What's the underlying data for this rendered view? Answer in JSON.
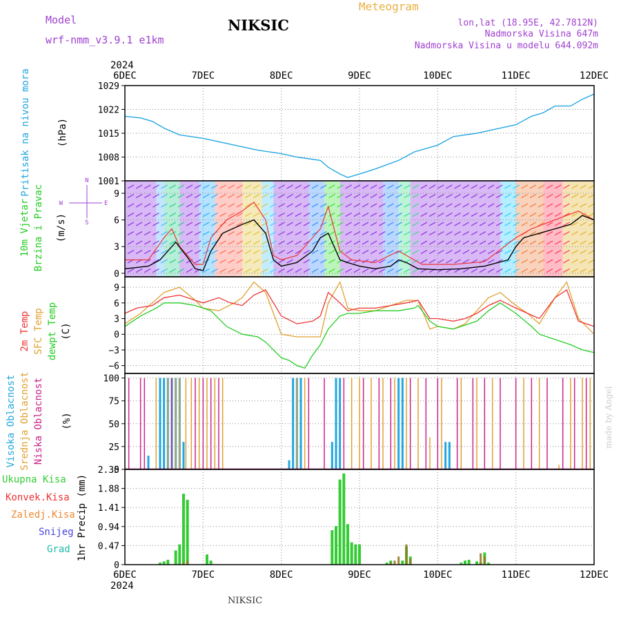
{
  "header": {
    "model_label": "Model",
    "model_name": "wrf-nmm_v3.9.1 e1km",
    "station": "NIKSIC",
    "product": "Meteogram",
    "coords": "lon,lat (18.95E, 42.7812N)",
    "elev": "Nadmorska Visina 647m",
    "elev_model": "Nadmorska Visina u modelu 644.092m",
    "year_top": "2024",
    "year_bottom": "2024",
    "footer": "NIKSIC",
    "credit": "made by Angel"
  },
  "colors": {
    "pressure": "#22a6e0",
    "wind_speed": "#000000",
    "wind_gust": "#ee3333",
    "temp_2m": "#ee3333",
    "temp_sfc": "#e0a030",
    "temp_dew": "#22cc22",
    "cloud_high": "#22a6e0",
    "cloud_mid": "#e0a030",
    "cloud_low": "#cc2288",
    "precip_total": "#33cc33",
    "precip_conv": "#ee3333",
    "precip_frozen": "#ee8833",
    "precip_snow": "#4444dd",
    "precip_graupel": "#22bbaa"
  },
  "chart_data": [
    {
      "type": "line",
      "panel": "pressure",
      "ylabel": [
        "Pritisak na nivou mora",
        "(hPa)"
      ],
      "x_ticks": [
        "6DEC",
        "7DEC",
        "8DEC",
        "9DEC",
        "10DEC",
        "11DEC",
        "12DEC"
      ],
      "xlim_days": [
        0,
        6
      ],
      "ylim": [
        1001,
        1029
      ],
      "y_ticks": [
        1001,
        1008,
        1015,
        1022,
        1029
      ],
      "grid": true,
      "series": [
        {
          "x": [
            0,
            0.2,
            0.35,
            0.5,
            0.7,
            1.0,
            1.2,
            1.5,
            1.7,
            2.0,
            2.2,
            2.5,
            2.6,
            2.75,
            2.85,
            3.0,
            3.2,
            3.5,
            3.7,
            4.0,
            4.2,
            4.5,
            4.7,
            5.0,
            5.2,
            5.35,
            5.5,
            5.7,
            5.85,
            6.0
          ],
          "y": [
            1020,
            1019.5,
            1018.5,
            1016.5,
            1014.5,
            1013.5,
            1012.5,
            1011,
            1010,
            1009,
            1008,
            1007,
            1005,
            1003,
            1002,
            1003,
            1004.5,
            1007,
            1009.5,
            1011.5,
            1014,
            1015,
            1016,
            1017.5,
            1020,
            1021,
            1023,
            1023,
            1025,
            1026.5
          ]
        }
      ]
    },
    {
      "type": "line",
      "panel": "wind",
      "ylabel": [
        "10m Vjetar",
        "Brzina i Pravac",
        "(m/s)"
      ],
      "direction_legend": {
        "n": "N",
        "e": "E",
        "s": "S",
        "w": "W"
      },
      "ylim": [
        -0.4,
        10.4
      ],
      "y_ticks": [
        0,
        3,
        6,
        9
      ],
      "grid": true,
      "series": [
        {
          "name": "speed",
          "x": [
            0,
            0.3,
            0.45,
            0.55,
            0.65,
            0.8,
            0.9,
            1.0,
            1.1,
            1.25,
            1.5,
            1.65,
            1.8,
            1.9,
            2.0,
            2.2,
            2.4,
            2.5,
            2.6,
            2.75,
            2.85,
            3.0,
            3.2,
            3.4,
            3.5,
            3.6,
            3.75,
            4.0,
            4.3,
            4.6,
            4.9,
            5.0,
            5.1,
            5.3,
            5.5,
            5.7,
            5.85,
            6.0
          ],
          "y": [
            0.5,
            0.8,
            1.5,
            2.5,
            3.5,
            1.8,
            0.5,
            0.3,
            2.5,
            4.5,
            5.5,
            6,
            4.5,
            1.5,
            0.8,
            1.2,
            2.5,
            4,
            4.5,
            1.5,
            1.2,
            0.8,
            0.5,
            0.8,
            1.5,
            1.2,
            0.5,
            0.4,
            0.5,
            0.8,
            1.5,
            3,
            4,
            4.5,
            5,
            5.5,
            6.5,
            6
          ]
        },
        {
          "name": "gust",
          "x": [
            0,
            0.3,
            0.5,
            0.6,
            0.7,
            0.9,
            1.0,
            1.1,
            1.3,
            1.5,
            1.65,
            1.8,
            1.9,
            2.0,
            2.2,
            2.5,
            2.6,
            2.75,
            2.9,
            3.2,
            3.5,
            3.6,
            3.8,
            4.2,
            4.6,
            5.0,
            5.2,
            5.5,
            5.8,
            6.0
          ],
          "y": [
            1.5,
            1.5,
            4,
            5,
            3,
            1,
            1,
            4,
            6,
            7,
            8,
            6,
            2,
            1.5,
            2,
            5,
            7.5,
            2.5,
            1.5,
            1.2,
            2.5,
            2,
            1,
            1,
            1.3,
            4,
            5,
            6,
            7,
            6
          ]
        }
      ]
    },
    {
      "type": "line",
      "panel": "temperature",
      "ylabel": [
        "2m Temp",
        "SFC Temp",
        "dewpt Temp",
        "(C)"
      ],
      "ylim": [
        -7.5,
        11
      ],
      "y_ticks": [
        -6,
        -3,
        0,
        3,
        6,
        9
      ],
      "grid": true,
      "series": [
        {
          "name": "2m",
          "x": [
            0,
            0.15,
            0.35,
            0.5,
            0.7,
            0.9,
            1.0,
            1.2,
            1.35,
            1.5,
            1.65,
            1.8,
            1.9,
            2.0,
            2.2,
            2.4,
            2.5,
            2.6,
            2.75,
            2.85,
            3.0,
            3.2,
            3.4,
            3.6,
            3.75,
            3.9,
            4.0,
            4.2,
            4.35,
            4.5,
            4.65,
            4.8,
            5.0,
            5.15,
            5.3,
            5.5,
            5.65,
            5.8,
            6.0
          ],
          "y": [
            4,
            5,
            5.5,
            7,
            7.5,
            6.5,
            6,
            7,
            6,
            5.5,
            7.5,
            8.5,
            6,
            3.5,
            2,
            2.5,
            3.5,
            8,
            6,
            4.5,
            5,
            5,
            5.5,
            6,
            6.5,
            3,
            3,
            2.5,
            3,
            4,
            5.5,
            6.5,
            5,
            4,
            3,
            7,
            8.5,
            2.5,
            1.5
          ]
        },
        {
          "name": "sfc",
          "x": [
            0,
            0.2,
            0.35,
            0.5,
            0.7,
            0.9,
            1.0,
            1.2,
            1.4,
            1.5,
            1.65,
            1.8,
            1.9,
            2.0,
            2.2,
            2.5,
            2.6,
            2.75,
            2.85,
            3.0,
            3.2,
            3.4,
            3.6,
            3.75,
            3.9,
            4.0,
            4.2,
            4.35,
            4.5,
            4.65,
            4.8,
            5.0,
            5.15,
            5.3,
            5.5,
            5.65,
            5.8,
            6.0
          ],
          "y": [
            2,
            4,
            6,
            8,
            9,
            6.5,
            5,
            4.5,
            6,
            7,
            10,
            8,
            4,
            0,
            -0.5,
            -0.5,
            6,
            10,
            5,
            4.5,
            4.5,
            5.5,
            6.5,
            6.5,
            1,
            1.5,
            1,
            2,
            4.5,
            7,
            8,
            5.5,
            4,
            2,
            7,
            10,
            3,
            0
          ]
        },
        {
          "name": "dewpt",
          "x": [
            0,
            0.2,
            0.4,
            0.5,
            0.7,
            0.9,
            1.0,
            1.1,
            1.3,
            1.5,
            1.7,
            1.8,
            1.9,
            2.0,
            2.1,
            2.2,
            2.3,
            2.4,
            2.5,
            2.6,
            2.75,
            2.85,
            3.0,
            3.2,
            3.5,
            3.7,
            3.75,
            3.9,
            4.0,
            4.2,
            4.5,
            4.65,
            4.8,
            5.0,
            5.2,
            5.3,
            5.5,
            5.7,
            5.85,
            6.0
          ],
          "y": [
            1.5,
            3.5,
            5,
            6,
            6,
            5.5,
            5,
            4.5,
            1.5,
            0,
            -0.5,
            -1.5,
            -3,
            -4.5,
            -5,
            -6,
            -6.5,
            -4,
            -2,
            1,
            3.5,
            4,
            4,
            4.5,
            4.5,
            5,
            5.5,
            2.5,
            1.5,
            1,
            2.5,
            4.5,
            6,
            4,
            1.5,
            0,
            -1,
            -2,
            -3,
            -3.5
          ]
        }
      ]
    },
    {
      "type": "bar",
      "panel": "clouds",
      "ylabel": [
        "Visoka Oblacnost",
        "Srednja Oblacnost",
        "Niska Oblacnost",
        "(%)"
      ],
      "ylim": [
        0,
        105
      ],
      "y_ticks": [
        0,
        25,
        50,
        75,
        100
      ],
      "grid": true,
      "series": [
        {
          "name": "high",
          "x": [
            0.3,
            0.45,
            0.5,
            0.55,
            0.6,
            0.65,
            0.7,
            0.75,
            2.1,
            2.15,
            2.2,
            2.25,
            2.65,
            2.7,
            2.75,
            3.5,
            3.55,
            4.1,
            4.15
          ],
          "values": [
            15,
            100,
            100,
            100,
            100,
            100,
            100,
            30,
            10,
            100,
            100,
            100,
            30,
            100,
            100,
            100,
            100,
            30,
            30
          ]
        },
        {
          "name": "mid",
          "x": [
            0.4,
            0.55,
            0.65,
            0.7,
            0.78,
            0.85,
            0.95,
            1.05,
            1.15,
            1.25,
            2.2,
            2.3,
            2.9,
            3.0,
            3.15,
            3.3,
            3.45,
            3.6,
            3.75,
            3.9,
            4.05,
            4.3,
            4.5,
            4.7,
            5.1,
            5.3,
            5.55,
            5.7,
            5.85,
            5.95
          ],
          "values": [
            100,
            100,
            100,
            100,
            100,
            100,
            100,
            100,
            100,
            100,
            100,
            100,
            100,
            100,
            100,
            100,
            100,
            100,
            100,
            35,
            100,
            100,
            100,
            100,
            100,
            100,
            5,
            100,
            100,
            100
          ]
        },
        {
          "name": "low",
          "x": [
            0.05,
            0.2,
            0.25,
            0.6,
            0.9,
            1.0,
            1.1,
            1.2,
            2.35,
            2.55,
            2.8,
            3.05,
            3.25,
            3.4,
            3.65,
            3.85,
            4.0,
            4.25,
            4.45,
            4.6,
            4.8,
            5.0,
            5.2,
            5.4,
            5.6,
            5.75,
            5.9
          ],
          "values": [
            100,
            100,
            100,
            100,
            100,
            100,
            100,
            100,
            100,
            100,
            100,
            100,
            100,
            100,
            100,
            100,
            100,
            100,
            100,
            100,
            100,
            100,
            100,
            100,
            100,
            100,
            100
          ]
        }
      ]
    },
    {
      "type": "bar",
      "panel": "precip",
      "ylabel": [
        "Ukupna Kisa",
        "Konvek.Kisa",
        "Zaledj.Kisa",
        "Snijeg",
        "Grad",
        "1hr Precip (mm)"
      ],
      "ylim": [
        0,
        2.35
      ],
      "y_ticks": [
        0,
        0.47,
        0.94,
        1.41,
        1.88,
        2.35
      ],
      "grid": true,
      "series": [
        {
          "name": "total",
          "x": [
            0.45,
            0.5,
            0.55,
            0.65,
            0.7,
            0.75,
            0.8,
            1.05,
            1.1,
            2.65,
            2.7,
            2.75,
            2.8,
            2.85,
            2.9,
            2.95,
            3.0,
            3.35,
            3.4,
            3.55,
            3.6,
            3.65,
            4.3,
            4.35,
            4.4,
            4.5,
            4.55,
            4.6,
            4.65
          ],
          "values": [
            0.05,
            0.08,
            0.12,
            0.35,
            0.5,
            1.75,
            1.6,
            0.25,
            0.1,
            0.85,
            0.95,
            2.1,
            2.25,
            1.0,
            0.55,
            0.5,
            0.5,
            0.05,
            0.1,
            0.1,
            0.45,
            0.2,
            0.05,
            0.1,
            0.12,
            0.08,
            0.05,
            0.3,
            0.05
          ]
        },
        {
          "name": "convective",
          "x": [
            0.75,
            0.8,
            3.4,
            3.45,
            3.5,
            3.6,
            3.65,
            4.55,
            4.6
          ],
          "values": [
            0.05,
            0.1,
            0.05,
            0.1,
            0.2,
            0.5,
            0.15,
            0.28,
            0.2
          ]
        }
      ]
    }
  ]
}
